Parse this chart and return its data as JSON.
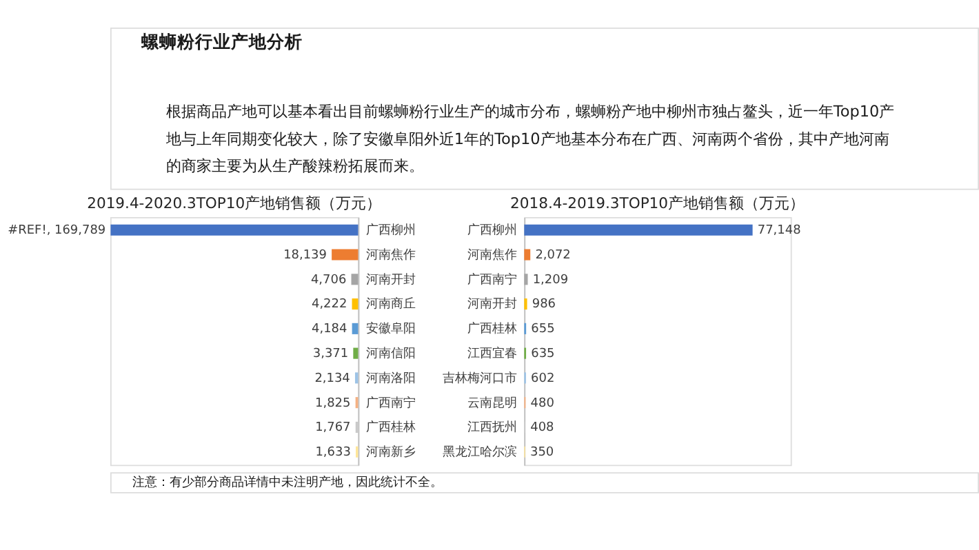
{
  "chart_data": [
    {
      "type": "bar",
      "orientation": "horizontal",
      "title": "2019.4-2020.3TOP10产地销售额（万元）",
      "annotations": [
        "螺蛳粉行业产地分析",
        "根据商品产地可以基本看出目前螺蛳粉行业生产的城市分布，螺蛳粉产地中柳州市独占鳌头，近一年Top10产",
        "地与上年同期变化较大，除了安徽阜阳外近1年的Top10产地基本分布在广西、河南两个省份，其中产地河南",
        "的商家主要为从生产酸辣粉拓展而来。",
        "注意：有少部分商品详情中未注明产地，因此统计不全。"
      ],
      "categories": [
        "广西柳州",
        "河南焦作",
        "河南开封",
        "河南商丘",
        "安徽阜阳",
        "河南信阳",
        "河南洛阳",
        "广西南宁",
        "广西桂林",
        "河南新乡"
      ],
      "values": [
        169789,
        18139,
        4706,
        4222,
        4184,
        3371,
        2134,
        1825,
        1767,
        1633
      ],
      "value_labels": [
        "#REF!, 169,789",
        "18,139",
        "4,706",
        "4,222",
        "4,184",
        "3,371",
        "2,134",
        "1,825",
        "1,767",
        "1,633"
      ],
      "colors": [
        "#4472c4",
        "#ed7d31",
        "#a5a5a5",
        "#ffc000",
        "#5b9bd5",
        "#70ad47",
        "#9dc3e6",
        "#f4b183",
        "#c9c9c9",
        "#ffe699"
      ],
      "xlim": [
        170000,
        0
      ],
      "tick_labels": "y"
    },
    {
      "type": "bar",
      "orientation": "horizontal",
      "title": "2018.4-2019.3TOP10产地销售额（万元）",
      "categories": [
        "广西柳州",
        "河南焦作",
        "广西南宁",
        "河南开封",
        "广西桂林",
        "江西宜春",
        "吉林梅河口市",
        "云南昆明",
        "江西抚州",
        "黑龙江哈尔滨"
      ],
      "values": [
        77148,
        2072,
        1209,
        986,
        655,
        635,
        602,
        480,
        408,
        350
      ],
      "value_labels": [
        "77,148",
        "2,072",
        "1,209",
        "986",
        "655",
        "635",
        "602",
        "480",
        "408",
        "350"
      ],
      "colors": [
        "#4472c4",
        "#ed7d31",
        "#a5a5a5",
        "#ffc000",
        "#5b9bd5",
        "#70ad47",
        "#9dc3e6",
        "#f4b183",
        "#c9c9c9",
        "#ffe699"
      ],
      "xlim": [
        0,
        90000
      ],
      "tick_labels": "y"
    }
  ]
}
